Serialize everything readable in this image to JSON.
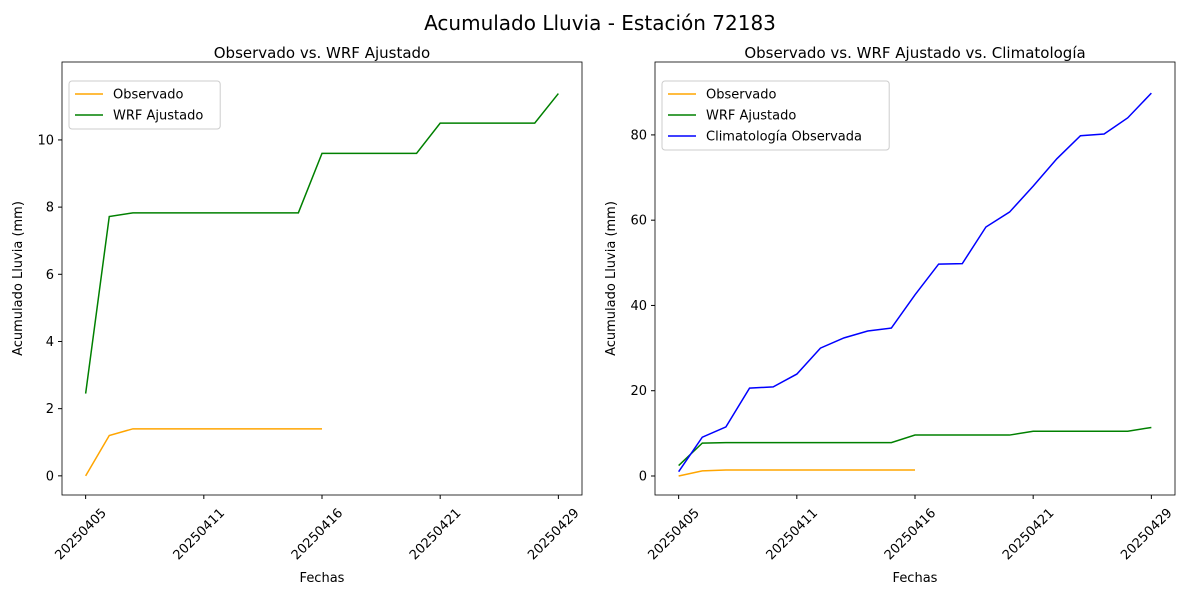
{
  "title": "Acumulado Lluvia - Estación 72183",
  "chart_data": [
    {
      "type": "line",
      "title": "Observado vs. WRF Ajustado",
      "xlabel": "Fechas",
      "ylabel": "Acumulado Lluvia (mm)",
      "categories": [
        "20250405",
        null,
        null,
        null,
        null,
        "20250411",
        null,
        null,
        null,
        null,
        "20250416",
        null,
        null,
        null,
        null,
        "20250421",
        null,
        null,
        null,
        null,
        "20250429"
      ],
      "xlim": [
        -1,
        21
      ],
      "ylim": [
        -0.57,
        12.32
      ],
      "yticks": [
        0,
        2,
        4,
        6,
        8,
        10
      ],
      "legend": "upper left",
      "series": [
        {
          "name": "Observado",
          "color": "#ffa500",
          "values": [
            0,
            1.2,
            1.4,
            1.4,
            1.4,
            1.4,
            1.4,
            1.4,
            1.4,
            1.4,
            1.4,
            null,
            null,
            null,
            null,
            null,
            null,
            null,
            null,
            null,
            null
          ]
        },
        {
          "name": "WRF Ajustado",
          "color": "#008000",
          "values": [
            2.45,
            7.72,
            7.83,
            7.83,
            7.83,
            7.83,
            7.83,
            7.83,
            7.83,
            7.83,
            9.6,
            9.6,
            9.6,
            9.6,
            9.6,
            10.5,
            10.5,
            10.5,
            10.5,
            10.5,
            11.38
          ]
        }
      ]
    },
    {
      "type": "line",
      "title": "Observado vs. WRF Ajustado vs. Climatología",
      "xlabel": "Fechas",
      "ylabel": "Acumulado Lluvia (mm)",
      "categories": [
        "20250405",
        null,
        null,
        null,
        null,
        "20250411",
        null,
        null,
        null,
        null,
        "20250416",
        null,
        null,
        null,
        null,
        "20250421",
        null,
        null,
        null,
        null,
        "20250429"
      ],
      "xlim": [
        -1,
        21
      ],
      "ylim": [
        -4.46,
        97.1
      ],
      "yticks": [
        0,
        20,
        40,
        60,
        80
      ],
      "legend": "upper left",
      "series": [
        {
          "name": "Observado",
          "color": "#ffa500",
          "values": [
            0,
            1.2,
            1.4,
            1.4,
            1.4,
            1.4,
            1.4,
            1.4,
            1.4,
            1.4,
            1.4,
            null,
            null,
            null,
            null,
            null,
            null,
            null,
            null,
            null,
            null
          ]
        },
        {
          "name": "WRF Ajustado",
          "color": "#008000",
          "values": [
            2.45,
            7.72,
            7.83,
            7.83,
            7.83,
            7.83,
            7.83,
            7.83,
            7.83,
            7.83,
            9.6,
            9.6,
            9.6,
            9.6,
            9.6,
            10.5,
            10.5,
            10.5,
            10.5,
            10.5,
            11.38
          ]
        },
        {
          "name": "Climatología Observada",
          "color": "#0000ff",
          "values": [
            1.0,
            9.1,
            11.5,
            20.6,
            20.9,
            23.9,
            30.0,
            32.4,
            34.0,
            34.7,
            42.5,
            49.7,
            49.8,
            58.4,
            61.9,
            68.0,
            74.4,
            79.8,
            80.2,
            84.0,
            89.8
          ]
        }
      ]
    }
  ]
}
